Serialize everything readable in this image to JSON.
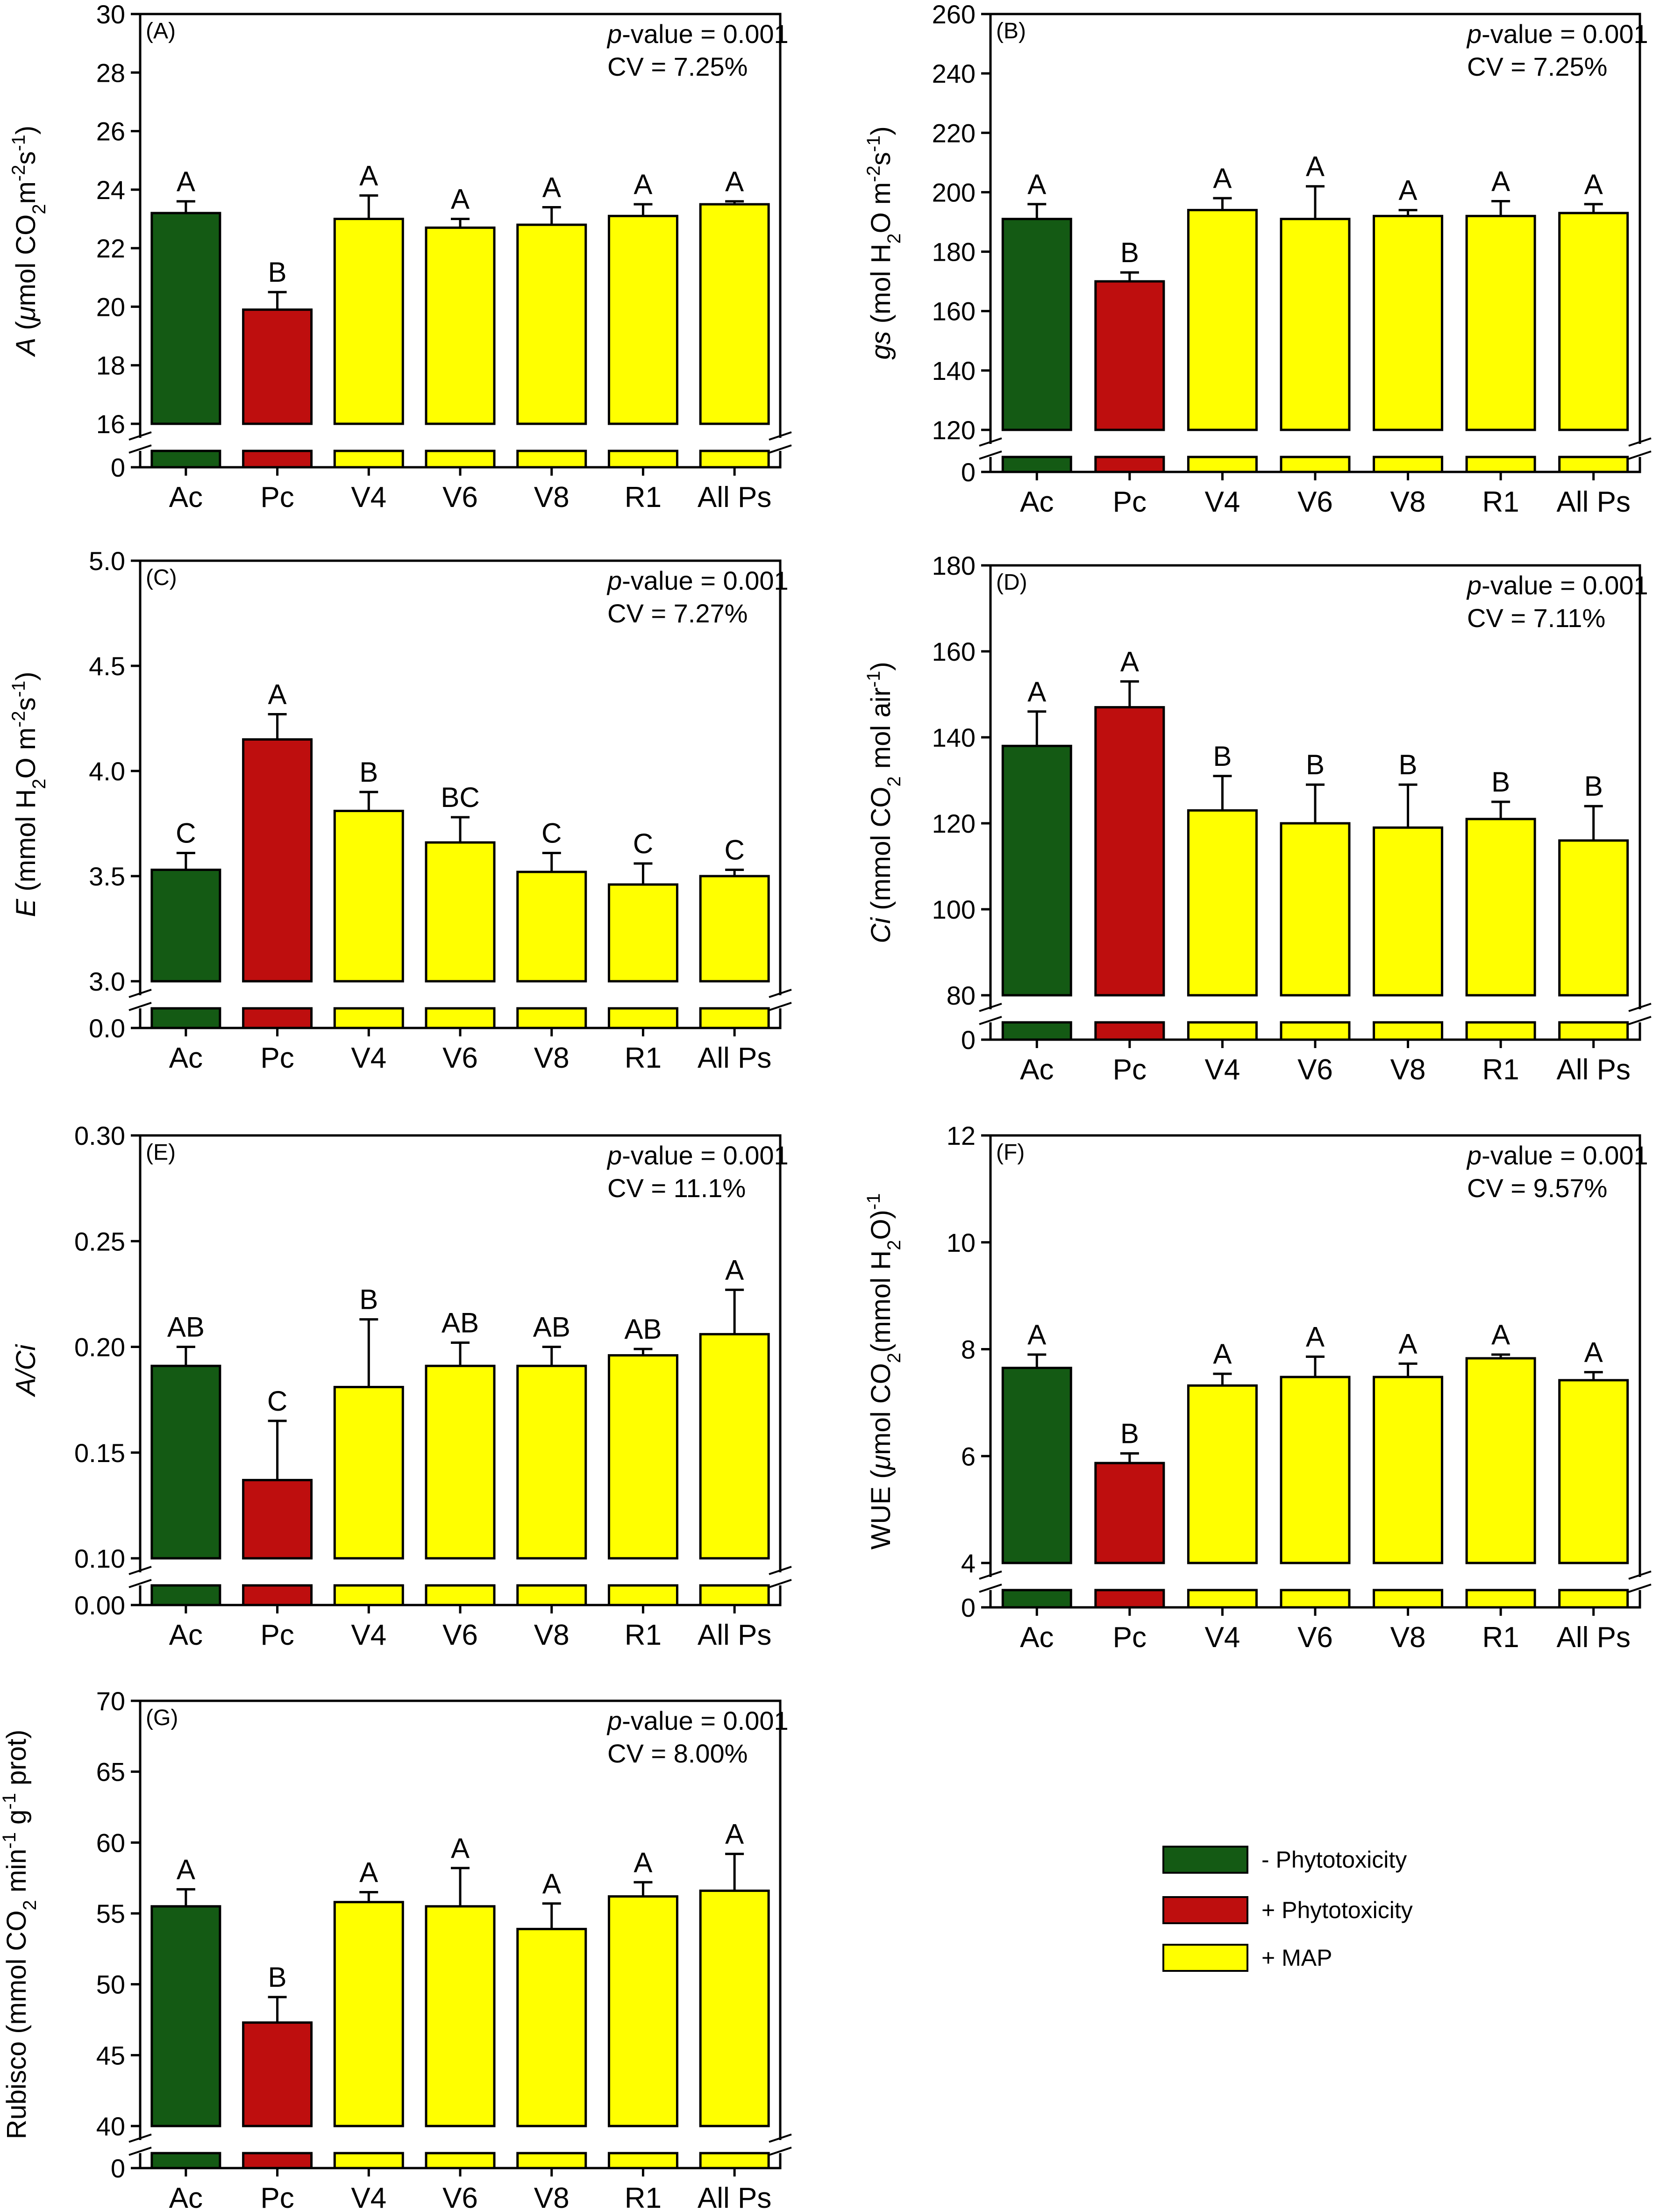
{
  "chart_data": [
    {
      "id": "A",
      "panel_label": "(A)",
      "type": "bar",
      "categories": [
        "Ac",
        "Pc",
        "V4",
        "V6",
        "V8",
        "R1",
        "All Ps"
      ],
      "values": [
        23.2,
        19.9,
        23.0,
        22.7,
        22.8,
        23.1,
        23.5
      ],
      "errors": [
        0.4,
        0.6,
        0.8,
        0.3,
        0.6,
        0.4,
        0.1
      ],
      "letters": [
        "A",
        "B",
        "A",
        "A",
        "A",
        "A",
        "A"
      ],
      "groups": [
        "minus",
        "plus",
        "map",
        "map",
        "map",
        "map",
        "map"
      ],
      "yticks": [
        "16",
        "18",
        "20",
        "22",
        "24",
        "26",
        "28",
        "30"
      ],
      "ytick_values": [
        16,
        18,
        20,
        22,
        24,
        26,
        28,
        30
      ],
      "ylim": [
        16,
        30
      ],
      "break_label": "0",
      "pvalue_p": "p",
      "pvalue_rest": "-value = 0.001",
      "cv": "CV = 7.25%",
      "ylabel_parts": [
        {
          "t": "A",
          "i": true
        },
        {
          "t": " ("
        },
        {
          "t": "μ",
          "i": true
        },
        {
          "t": "mol CO"
        },
        {
          "t": "2",
          "s": "sub"
        },
        {
          "t": "m"
        },
        {
          "t": "-2",
          "s": "sup"
        },
        {
          "t": "s"
        },
        {
          "t": "-1",
          "s": "sup"
        },
        {
          "t": ")"
        }
      ]
    },
    {
      "id": "B",
      "panel_label": "(B)",
      "type": "bar",
      "categories": [
        "Ac",
        "Pc",
        "V4",
        "V6",
        "V8",
        "R1",
        "All Ps"
      ],
      "values": [
        191,
        170,
        194,
        191,
        192,
        192,
        193
      ],
      "errors": [
        5,
        3,
        4,
        11,
        2,
        5,
        3
      ],
      "letters": [
        "A",
        "B",
        "A",
        "A",
        "A",
        "A",
        "A"
      ],
      "groups": [
        "minus",
        "plus",
        "map",
        "map",
        "map",
        "map",
        "map"
      ],
      "yticks": [
        "120",
        "140",
        "160",
        "180",
        "200",
        "220",
        "240",
        "260"
      ],
      "ytick_values": [
        120,
        140,
        160,
        180,
        200,
        220,
        240,
        260
      ],
      "ylim": [
        120,
        260
      ],
      "break_label": "0",
      "pvalue_p": "p",
      "pvalue_rest": "-value = 0.001",
      "cv": "CV = 7.25%",
      "ylabel_parts": [
        {
          "t": "gs",
          "i": true
        },
        {
          "t": " (mol H"
        },
        {
          "t": "2",
          "s": "sub"
        },
        {
          "t": "O m"
        },
        {
          "t": "-2",
          "s": "sup"
        },
        {
          "t": "s"
        },
        {
          "t": "-1",
          "s": "sup"
        },
        {
          "t": ")"
        }
      ]
    },
    {
      "id": "C",
      "panel_label": "(C)",
      "type": "bar",
      "categories": [
        "Ac",
        "Pc",
        "V4",
        "V6",
        "V8",
        "R1",
        "All Ps"
      ],
      "values": [
        3.53,
        4.15,
        3.81,
        3.66,
        3.52,
        3.46,
        3.5
      ],
      "errors": [
        0.08,
        0.12,
        0.09,
        0.12,
        0.09,
        0.1,
        0.03
      ],
      "letters": [
        "C",
        "A",
        "B",
        "BC",
        "C",
        "C",
        "C"
      ],
      "groups": [
        "minus",
        "plus",
        "map",
        "map",
        "map",
        "map",
        "map"
      ],
      "yticks": [
        "3.0",
        "3.5",
        "4.0",
        "4.5",
        "5.0"
      ],
      "ytick_values": [
        3.0,
        3.5,
        4.0,
        4.5,
        5.0
      ],
      "ylim": [
        3.0,
        5.0
      ],
      "break_label": "0.0",
      "pvalue_p": "p",
      "pvalue_rest": "-value = 0.001",
      "cv": "CV = 7.27%",
      "ylabel_parts": [
        {
          "t": "E",
          "i": true
        },
        {
          "t": " (mmol H"
        },
        {
          "t": "2",
          "s": "sub"
        },
        {
          "t": "O m"
        },
        {
          "t": "-2",
          "s": "sup"
        },
        {
          "t": "s"
        },
        {
          "t": "-1",
          "s": "sup"
        },
        {
          "t": ")"
        }
      ]
    },
    {
      "id": "D",
      "panel_label": "(D)",
      "type": "bar",
      "categories": [
        "Ac",
        "Pc",
        "V4",
        "V6",
        "V8",
        "R1",
        "All Ps"
      ],
      "values": [
        138,
        147,
        123,
        120,
        119,
        121,
        116
      ],
      "errors": [
        8,
        6,
        8,
        9,
        10,
        4,
        8
      ],
      "letters": [
        "A",
        "A",
        "B",
        "B",
        "B",
        "B",
        "B"
      ],
      "groups": [
        "minus",
        "plus",
        "map",
        "map",
        "map",
        "map",
        "map"
      ],
      "yticks": [
        "80",
        "100",
        "120",
        "140",
        "160",
        "180"
      ],
      "ytick_values": [
        80,
        100,
        120,
        140,
        160,
        180
      ],
      "ylim": [
        80,
        180
      ],
      "break_label": "0",
      "pvalue_p": "p",
      "pvalue_rest": "-value = 0.001",
      "cv": "CV = 7.11%",
      "ylabel_parts": [
        {
          "t": "Ci",
          "i": true
        },
        {
          "t": " (mmol CO"
        },
        {
          "t": "2",
          "s": "sub"
        },
        {
          "t": " mol air"
        },
        {
          "t": "-1",
          "s": "sup"
        },
        {
          "t": ")"
        }
      ]
    },
    {
      "id": "E",
      "panel_label": "(E)",
      "type": "bar",
      "categories": [
        "Ac",
        "Pc",
        "V4",
        "V6",
        "V8",
        "R1",
        "All Ps"
      ],
      "values": [
        0.191,
        0.137,
        0.181,
        0.191,
        0.191,
        0.196,
        0.206
      ],
      "errors": [
        0.009,
        0.028,
        0.032,
        0.011,
        0.009,
        0.003,
        0.021
      ],
      "letters": [
        "AB",
        "C",
        "B",
        "AB",
        "AB",
        "AB",
        "A"
      ],
      "groups": [
        "minus",
        "plus",
        "map",
        "map",
        "map",
        "map",
        "map"
      ],
      "yticks": [
        "0.10",
        "0.15",
        "0.20",
        "0.25",
        "0.30"
      ],
      "ytick_values": [
        0.1,
        0.15,
        0.2,
        0.25,
        0.3
      ],
      "ylim": [
        0.1,
        0.3
      ],
      "break_label": "0.00",
      "pvalue_p": "p",
      "pvalue_rest": "-value = 0.001",
      "cv": "CV = 11.1%",
      "ylabel_parts": [
        {
          "t": "A/Ci",
          "i": true
        }
      ]
    },
    {
      "id": "F",
      "panel_label": "(F)",
      "type": "bar",
      "categories": [
        "Ac",
        "Pc",
        "V4",
        "V6",
        "V8",
        "R1",
        "All Ps"
      ],
      "values": [
        7.65,
        5.87,
        7.32,
        7.48,
        7.48,
        7.83,
        7.42
      ],
      "errors": [
        0.25,
        0.18,
        0.22,
        0.38,
        0.25,
        0.07,
        0.15
      ],
      "letters": [
        "A",
        "B",
        "A",
        "A",
        "A",
        "A",
        "A"
      ],
      "groups": [
        "minus",
        "plus",
        "map",
        "map",
        "map",
        "map",
        "map"
      ],
      "yticks": [
        "4",
        "6",
        "8",
        "10",
        "12"
      ],
      "ytick_values": [
        4,
        6,
        8,
        10,
        12
      ],
      "ylim": [
        4,
        12
      ],
      "break_label": "0",
      "pvalue_p": "p",
      "pvalue_rest": "-value = 0.001",
      "cv": "CV = 9.57%",
      "ylabel_parts": [
        {
          "t": "WUE ("
        },
        {
          "t": "μ",
          "i": true
        },
        {
          "t": "mol CO"
        },
        {
          "t": "2",
          "s": "sub"
        },
        {
          "t": "(mmol H"
        },
        {
          "t": "2",
          "s": "sub"
        },
        {
          "t": "O)"
        },
        {
          "t": "-1",
          "s": "sup"
        }
      ]
    },
    {
      "id": "G",
      "panel_label": "(G)",
      "type": "bar",
      "categories": [
        "Ac",
        "Pc",
        "V4",
        "V6",
        "V8",
        "R1",
        "All Ps"
      ],
      "values": [
        55.5,
        47.3,
        55.8,
        55.5,
        53.9,
        56.2,
        56.6
      ],
      "errors": [
        1.2,
        1.8,
        0.7,
        2.7,
        1.8,
        1.0,
        2.6
      ],
      "letters": [
        "A",
        "B",
        "A",
        "A",
        "A",
        "A",
        "A"
      ],
      "groups": [
        "minus",
        "plus",
        "map",
        "map",
        "map",
        "map",
        "map"
      ],
      "yticks": [
        "40",
        "45",
        "50",
        "55",
        "60",
        "65",
        "70"
      ],
      "ytick_values": [
        40,
        45,
        50,
        55,
        60,
        65,
        70
      ],
      "ylim": [
        40,
        70
      ],
      "break_label": "0",
      "pvalue_p": "p",
      "pvalue_rest": "-value = 0.001",
      "cv": "CV = 8.00%",
      "ylabel_parts": [
        {
          "t": "Rubisco (mmol CO"
        },
        {
          "t": "2",
          "s": "sub"
        },
        {
          "t": " min"
        },
        {
          "t": "-1",
          "s": "sup"
        },
        {
          "t": " g"
        },
        {
          "t": "-1",
          "s": "sup"
        },
        {
          "t": " prot)"
        }
      ]
    }
  ],
  "colors": {
    "minus": "#145a14",
    "plus": "#be0e0e",
    "map": "#ffff00"
  },
  "legend": {
    "items": [
      {
        "group": "minus",
        "label": "- Phytotoxicity"
      },
      {
        "group": "plus",
        "label": "+ Phytotoxicity"
      },
      {
        "group": "map",
        "label": "+ MAP"
      }
    ]
  }
}
